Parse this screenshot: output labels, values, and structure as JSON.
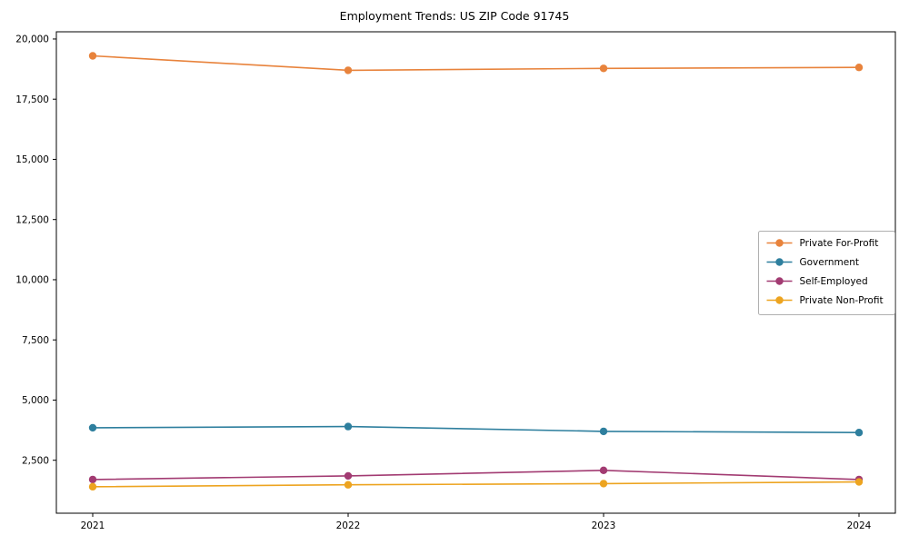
{
  "chart_data": {
    "type": "line",
    "title": "Employment Trends: US ZIP Code 91745",
    "x": [
      "2021",
      "2022",
      "2023",
      "2024"
    ],
    "series": [
      {
        "name": "Private For-Profit",
        "color": "#e8833c",
        "values": [
          19300,
          18700,
          18780,
          18820
        ]
      },
      {
        "name": "Government",
        "color": "#2e7f9e",
        "values": [
          3850,
          3900,
          3700,
          3650
        ]
      },
      {
        "name": "Self-Employed",
        "color": "#a23b72",
        "values": [
          1700,
          1850,
          2080,
          1700
        ]
      },
      {
        "name": "Private Non-Profit",
        "color": "#eda420",
        "values": [
          1400,
          1480,
          1530,
          1600
        ]
      }
    ],
    "xlabel": "",
    "ylabel": "",
    "ylim": [
      300,
      20300
    ],
    "yticks": [
      2500,
      5000,
      7500,
      10000,
      12500,
      15000,
      17500,
      20000
    ],
    "grid": false,
    "legend_position": "right-middle",
    "axis_color": "#000000",
    "legend_border_color": "#b0b0b0"
  }
}
